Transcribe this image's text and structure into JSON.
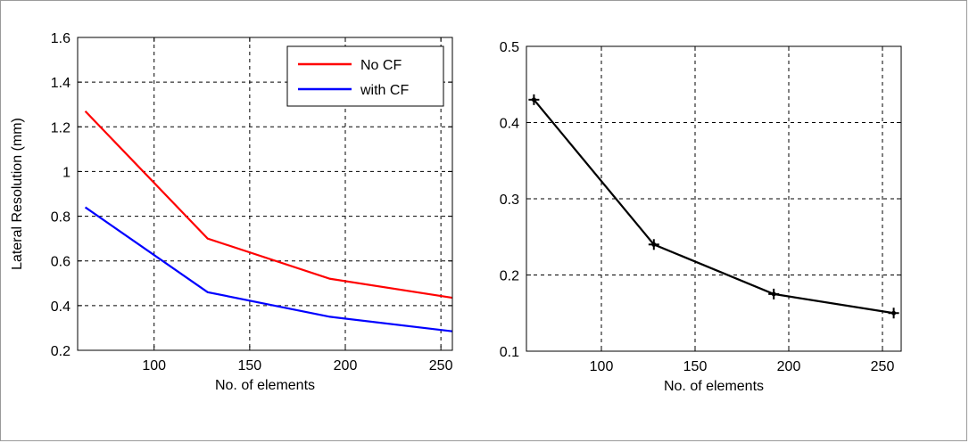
{
  "chart_data": [
    {
      "type": "line",
      "title": "",
      "xlabel": "No. of elements",
      "ylabel": "Lateral Resolution (mm)",
      "xlim": [
        60,
        256
      ],
      "ylim": [
        0.2,
        1.6
      ],
      "xticks": [
        100,
        150,
        200,
        250
      ],
      "yticks": [
        0.2,
        0.4,
        0.6,
        0.8,
        1,
        1.2,
        1.4,
        1.6
      ],
      "grid": true,
      "legend_placement": "top-right",
      "series": [
        {
          "name": "No CF",
          "color": "#ff0000",
          "x": [
            64,
            128,
            192,
            256
          ],
          "y": [
            1.27,
            0.7,
            0.52,
            0.435
          ]
        },
        {
          "name": "with CF",
          "color": "#0000ff",
          "x": [
            64,
            128,
            192,
            256
          ],
          "y": [
            0.84,
            0.46,
            0.35,
            0.285
          ]
        }
      ]
    },
    {
      "type": "line",
      "title": "",
      "xlabel": "No. of elements",
      "ylabel": "",
      "xlim": [
        60,
        260
      ],
      "ylim": [
        0.1,
        0.5
      ],
      "xticks": [
        100,
        150,
        200,
        250
      ],
      "yticks": [
        0.1,
        0.2,
        0.3,
        0.4,
        0.5
      ],
      "grid": true,
      "series": [
        {
          "color": "#000000",
          "marker": "plus",
          "x": [
            64,
            128,
            192,
            256
          ],
          "y": [
            0.43,
            0.24,
            0.175,
            0.15
          ]
        }
      ]
    }
  ]
}
